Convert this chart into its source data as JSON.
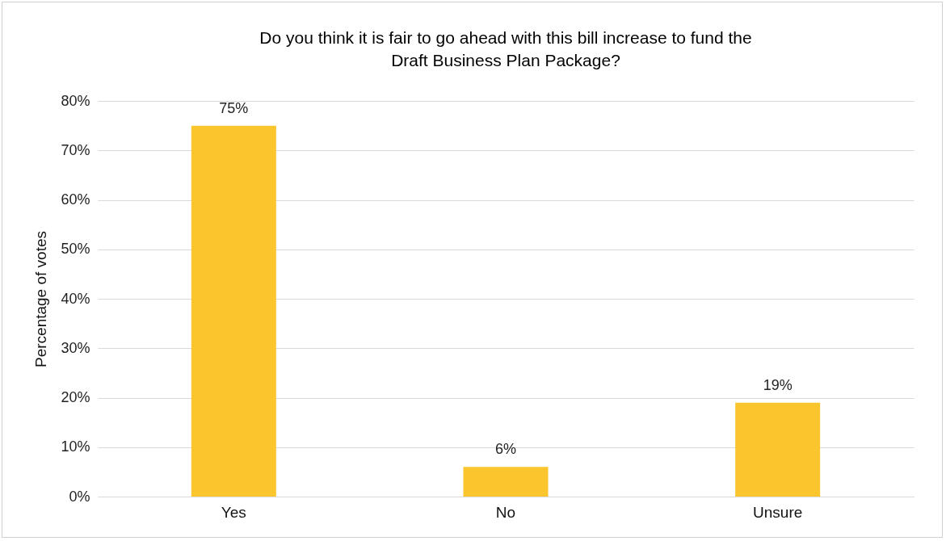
{
  "chart_data": {
    "type": "bar",
    "title": "Do you think it is fair to go ahead with this bill increase to fund the Draft Business Plan Package?",
    "ylabel": "Percentage of votes",
    "categories": [
      "Yes",
      "No",
      "Unsure"
    ],
    "values": [
      75,
      6,
      19
    ],
    "color": "#fbc52e",
    "ylim": [
      0,
      80
    ],
    "yticks": [
      {
        "value": 0,
        "label": "0%"
      },
      {
        "value": 10,
        "label": "10%"
      },
      {
        "value": 20,
        "label": "20%"
      },
      {
        "value": 30,
        "label": "30%"
      },
      {
        "value": 40,
        "label": "40%"
      },
      {
        "value": 50,
        "label": "50%"
      },
      {
        "value": 60,
        "label": "60%"
      },
      {
        "value": 70,
        "label": "70%"
      },
      {
        "value": 80,
        "label": "80%"
      }
    ],
    "value_labels": [
      "75%",
      "6%",
      "19%"
    ],
    "grid": "y"
  }
}
